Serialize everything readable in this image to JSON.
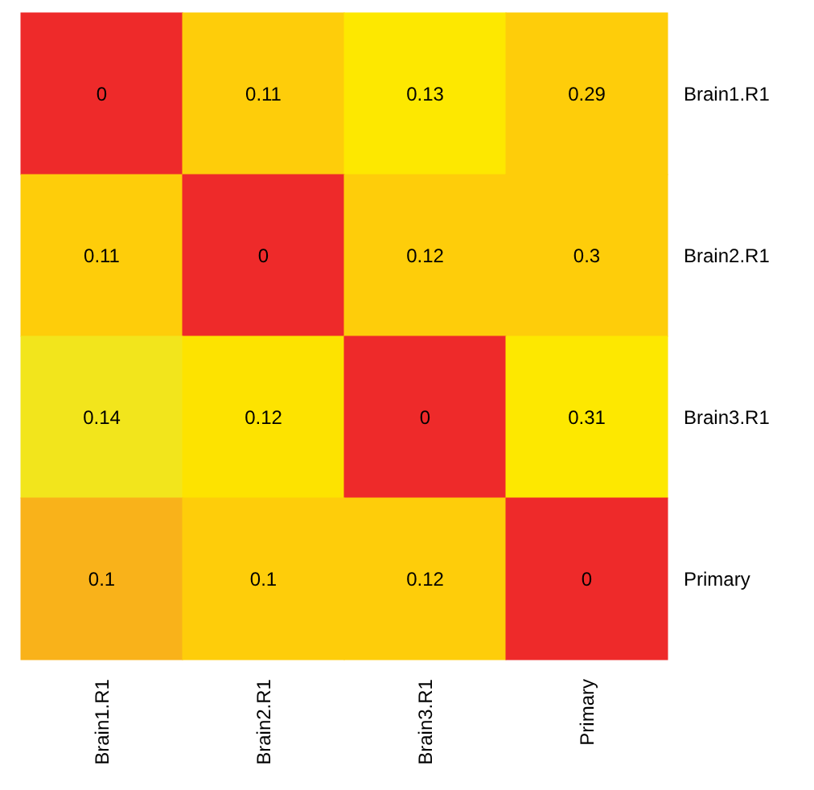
{
  "chart_data": {
    "type": "heatmap",
    "categories": [
      "Brain1.R1",
      "Brain2.R1",
      "Brain3.R1",
      "Primary"
    ],
    "y_categories": [
      "Brain1.R1",
      "Brain2.R1",
      "Brain3.R1",
      "Primary"
    ],
    "cells": [
      [
        0,
        0.11,
        0.13,
        0.29
      ],
      [
        0.11,
        0,
        0.12,
        0.3
      ],
      [
        0.14,
        0.12,
        0,
        0.31
      ],
      [
        0.1,
        0.1,
        0.12,
        0
      ]
    ],
    "colors": [
      [
        "#ee2a2a",
        "#fecd0a",
        "#fde800",
        "#fecd0a"
      ],
      [
        "#fecd0a",
        "#ee2a2a",
        "#fecd0a",
        "#fecd0a"
      ],
      [
        "#f2e51c",
        "#fde300",
        "#ee2a2a",
        "#fde800"
      ],
      [
        "#f9b21a",
        "#fecd0a",
        "#fecd0a",
        "#ee2a2a"
      ]
    ],
    "data_labels": true
  }
}
